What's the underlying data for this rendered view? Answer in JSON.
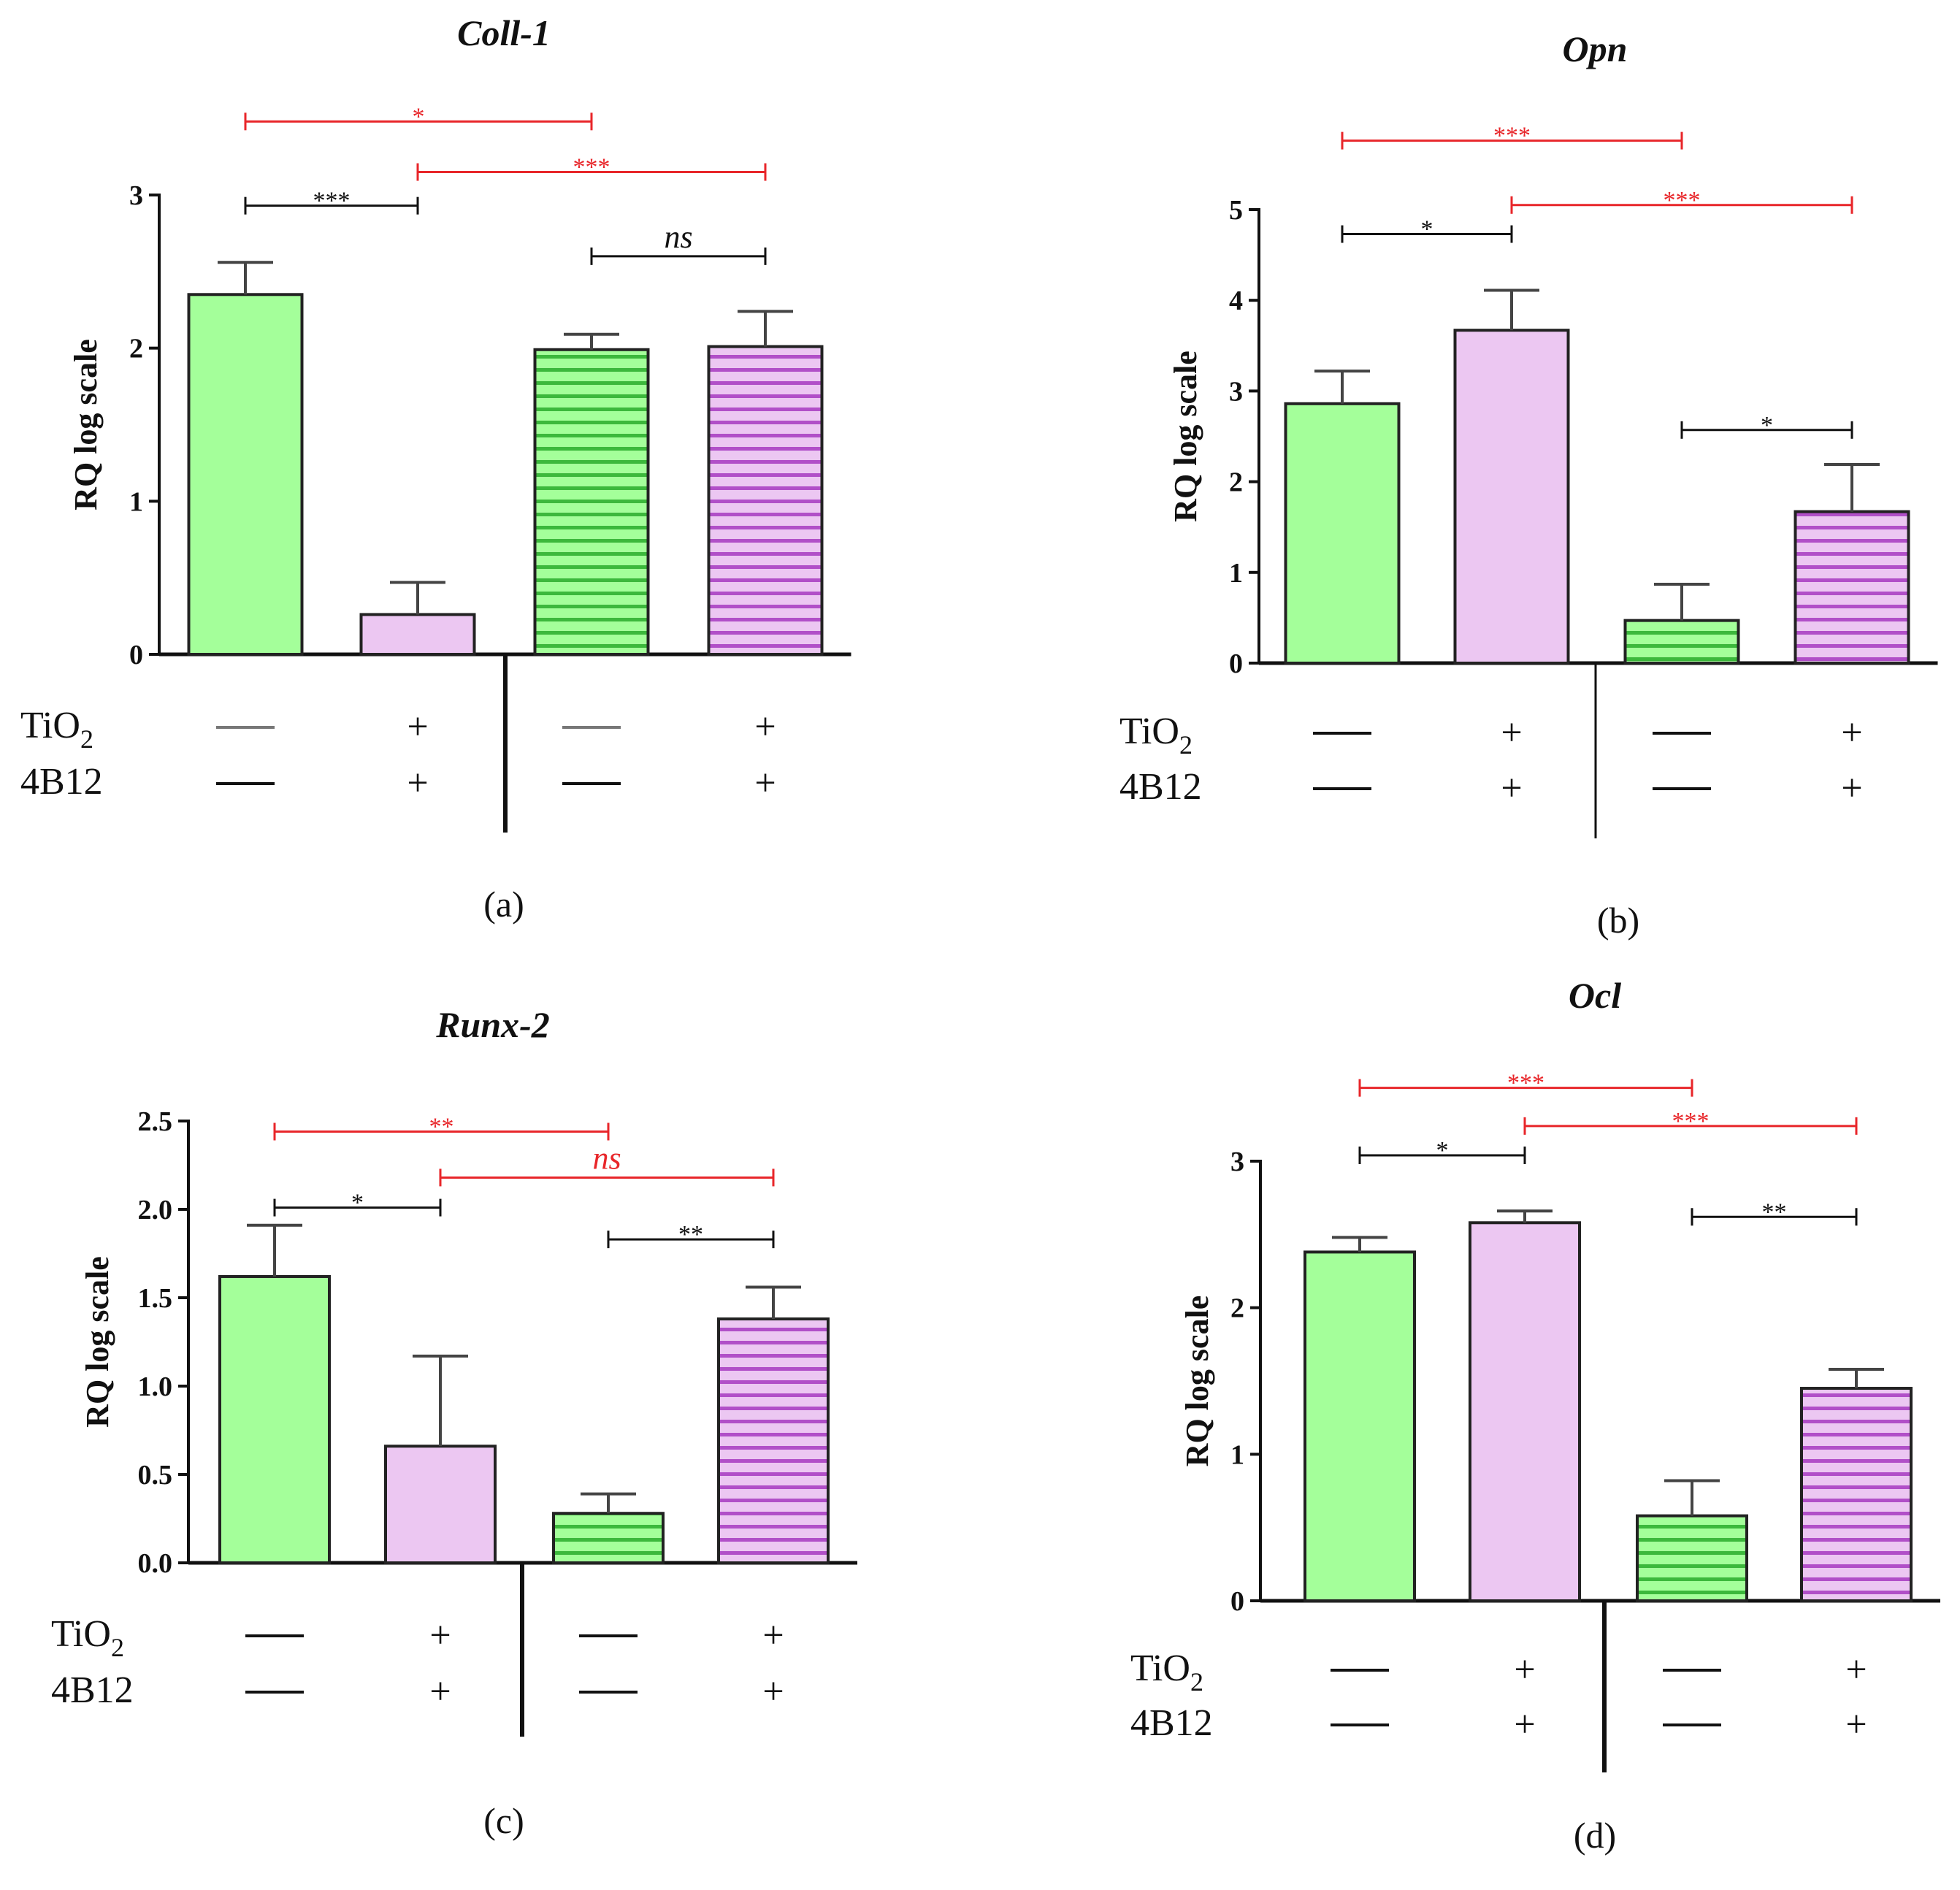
{
  "figure": {
    "row_labels": [
      "TiO",
      "2",
      "4B12"
    ],
    "row_label_keys": [
      "TiO2",
      "4B12"
    ],
    "colors": {
      "green_fill": "#a4ff9a",
      "green_stripe": "#3cb83c",
      "pink_fill": "#ecc7f2",
      "pink_stripe": "#b14fc8",
      "sig_black": "#111111",
      "sig_red": "#e8262a"
    }
  },
  "chart_data": [
    {
      "panel_label": "(a)",
      "type": "bar",
      "title": "Coll-1",
      "ylabel": "RQ log scale",
      "ylim": [
        0,
        3
      ],
      "yticks": [
        "0",
        "1",
        "2",
        "3"
      ],
      "categories": [
        "TiO2 − / 4B12 −",
        "TiO2 + / 4B12 +",
        "TiO2 − / 4B12 −",
        "TiO2 + / 4B12 +"
      ],
      "values": [
        2.35,
        0.26,
        1.99,
        2.01
      ],
      "errors": [
        0.21,
        0.21,
        0.1,
        0.23
      ],
      "bar_colors": [
        "green",
        "pink",
        "green",
        "pink"
      ],
      "bar_patterns": [
        "solid",
        "solid",
        "striped",
        "striped"
      ],
      "conditions": [
        [
          "—",
          "—"
        ],
        [
          "+",
          "+"
        ],
        [
          "—",
          "—"
        ],
        [
          "+",
          "+"
        ]
      ],
      "significance": [
        {
          "from": 0,
          "to": 2,
          "label": "*",
          "color": "red",
          "level": 3.48
        },
        {
          "from": 1,
          "to": 3,
          "label": "***",
          "color": "red",
          "level": 3.15
        },
        {
          "from": 0,
          "to": 1,
          "label": "***",
          "color": "black",
          "level": 2.93
        },
        {
          "from": 2,
          "to": 3,
          "label": "ns",
          "color": "black",
          "level": 2.6
        }
      ]
    },
    {
      "panel_label": "(b)",
      "type": "bar",
      "title": "Opn",
      "ylabel": "RQ log scale",
      "ylim": [
        0,
        5
      ],
      "yticks": [
        "0",
        "1",
        "2",
        "3",
        "4",
        "5"
      ],
      "categories": [
        "TiO2 − / 4B12 −",
        "TiO2 + / 4B12 +",
        "TiO2 − / 4B12 −",
        "TiO2 + / 4B12 +"
      ],
      "values": [
        2.86,
        3.67,
        0.47,
        1.67
      ],
      "errors": [
        0.36,
        0.44,
        0.4,
        0.52
      ],
      "bar_colors": [
        "green",
        "pink",
        "green",
        "pink"
      ],
      "bar_patterns": [
        "solid",
        "solid",
        "striped",
        "striped"
      ],
      "conditions": [
        [
          "—",
          "—"
        ],
        [
          "+",
          "+"
        ],
        [
          "—",
          "—"
        ],
        [
          "+",
          "+"
        ]
      ],
      "significance": [
        {
          "from": 0,
          "to": 2,
          "label": "***",
          "color": "red",
          "level": 5.76
        },
        {
          "from": 1,
          "to": 3,
          "label": "***",
          "color": "red",
          "level": 5.05
        },
        {
          "from": 0,
          "to": 1,
          "label": "*",
          "color": "black",
          "level": 4.73
        },
        {
          "from": 2,
          "to": 3,
          "label": "*",
          "color": "black",
          "level": 2.57
        }
      ]
    },
    {
      "panel_label": "(c)",
      "type": "bar",
      "title": "Runx-2",
      "ylabel": "RQ log scale",
      "ylim": [
        0,
        2.5
      ],
      "yticks": [
        "0.0",
        "0.5",
        "1.0",
        "1.5",
        "2.0",
        "2.5"
      ],
      "categories": [
        "TiO2 − / 4B12 −",
        "TiO2 + / 4B12 +",
        "TiO2 − / 4B12 −",
        "TiO2 + / 4B12 +"
      ],
      "values": [
        1.62,
        0.66,
        0.28,
        1.38
      ],
      "errors": [
        0.29,
        0.51,
        0.11,
        0.18
      ],
      "bar_colors": [
        "green",
        "pink",
        "green",
        "pink"
      ],
      "bar_patterns": [
        "solid",
        "solid",
        "striped",
        "striped"
      ],
      "conditions": [
        [
          "—",
          "—"
        ],
        [
          "+",
          "+"
        ],
        [
          "—",
          "—"
        ],
        [
          "+",
          "+"
        ]
      ],
      "significance": [
        {
          "from": 0,
          "to": 2,
          "label": "**",
          "color": "red",
          "level": 2.44
        },
        {
          "from": 1,
          "to": 3,
          "label": "ns",
          "color": "red",
          "level": 2.18
        },
        {
          "from": 0,
          "to": 1,
          "label": "*",
          "color": "black",
          "level": 2.01
        },
        {
          "from": 2,
          "to": 3,
          "label": "**",
          "color": "black",
          "level": 1.83
        }
      ]
    },
    {
      "panel_label": "(d)",
      "type": "bar",
      "title": "Ocl",
      "ylabel": "RQ log scale",
      "ylim": [
        0,
        3
      ],
      "yticks": [
        "0",
        "1",
        "2",
        "3"
      ],
      "categories": [
        "TiO2 − / 4B12 −",
        "TiO2 + / 4B12 +",
        "TiO2 − / 4B12 −",
        "TiO2 + / 4B12 +"
      ],
      "values": [
        2.38,
        2.58,
        0.58,
        1.45
      ],
      "errors": [
        0.1,
        0.08,
        0.24,
        0.13
      ],
      "bar_colors": [
        "green",
        "pink",
        "green",
        "pink"
      ],
      "bar_patterns": [
        "solid",
        "solid",
        "striped",
        "striped"
      ],
      "conditions": [
        [
          "—",
          "—"
        ],
        [
          "+",
          "+"
        ],
        [
          "—",
          "—"
        ],
        [
          "+",
          "+"
        ]
      ],
      "significance": [
        {
          "from": 0,
          "to": 2,
          "label": "***",
          "color": "red",
          "level": 3.5
        },
        {
          "from": 1,
          "to": 3,
          "label": "***",
          "color": "red",
          "level": 3.24
        },
        {
          "from": 0,
          "to": 1,
          "label": "*",
          "color": "black",
          "level": 3.04
        },
        {
          "from": 2,
          "to": 3,
          "label": "**",
          "color": "black",
          "level": 2.62
        }
      ]
    }
  ]
}
